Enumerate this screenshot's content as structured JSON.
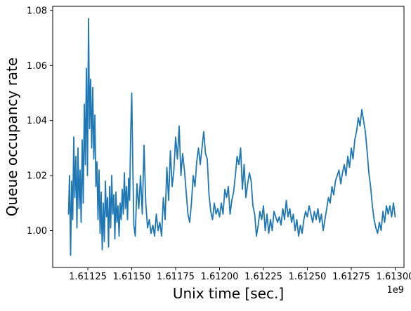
{
  "chart_data": {
    "type": "line",
    "xlabel": "Unix time [sec.]",
    "ylabel": "Queue occupancy rate",
    "x_offset_label": "1e9",
    "x_tick_labels": [
      "1.61125",
      "1.61150",
      "1.61175",
      "1.61200",
      "1.61225",
      "1.61250",
      "1.61275",
      "1.61300"
    ],
    "x_tick_values": [
      1611250000,
      1611500000,
      1611750000,
      1612000000,
      1612250000,
      1612500000,
      1612750000,
      1613000000
    ],
    "y_tick_labels": [
      "1.00",
      "1.02",
      "1.04",
      "1.06",
      "1.08"
    ],
    "y_tick_values": [
      1.0,
      1.02,
      1.04,
      1.06,
      1.08
    ],
    "xlim": [
      1611050000,
      1613050000
    ],
    "ylim": [
      0.9866,
      1.0815
    ],
    "grid": false,
    "series": [
      {
        "color": "#1f77b4",
        "x": [
          1611140000,
          1611146000,
          1611152000,
          1611158000,
          1611164000,
          1611170000,
          1611176000,
          1611182000,
          1611188000,
          1611194000,
          1611200000,
          1611206000,
          1611212000,
          1611218000,
          1611224000,
          1611230000,
          1611236000,
          1611242000,
          1611248000,
          1611254000,
          1611260000,
          1611266000,
          1611272000,
          1611278000,
          1611284000,
          1611290000,
          1611296000,
          1611302000,
          1611308000,
          1611314000,
          1611320000,
          1611326000,
          1611332000,
          1611338000,
          1611344000,
          1611350000,
          1611356000,
          1611362000,
          1611368000,
          1611374000,
          1611380000,
          1611386000,
          1611392000,
          1611398000,
          1611404000,
          1611410000,
          1611416000,
          1611422000,
          1611428000,
          1611434000,
          1611440000,
          1611446000,
          1611452000,
          1611458000,
          1611464000,
          1611470000,
          1611476000,
          1611482000,
          1611488000,
          1611494000,
          1611500000,
          1611506000,
          1611512000,
          1611520000,
          1611530000,
          1611540000,
          1611550000,
          1611560000,
          1611570000,
          1611580000,
          1611590000,
          1611600000,
          1611610000,
          1611620000,
          1611630000,
          1611640000,
          1611650000,
          1611660000,
          1611670000,
          1611680000,
          1611690000,
          1611700000,
          1611710000,
          1611720000,
          1611730000,
          1611740000,
          1611750000,
          1611760000,
          1611770000,
          1611780000,
          1611790000,
          1611800000,
          1611810000,
          1611820000,
          1611830000,
          1611840000,
          1611850000,
          1611860000,
          1611870000,
          1611880000,
          1611890000,
          1611900000,
          1611910000,
          1611920000,
          1611930000,
          1611940000,
          1611950000,
          1611960000,
          1611970000,
          1611980000,
          1611990000,
          1612000000,
          1612010000,
          1612020000,
          1612030000,
          1612040000,
          1612050000,
          1612060000,
          1612070000,
          1612080000,
          1612090000,
          1612100000,
          1612110000,
          1612120000,
          1612130000,
          1612140000,
          1612150000,
          1612160000,
          1612170000,
          1612180000,
          1612190000,
          1612200000,
          1612210000,
          1612220000,
          1612230000,
          1612240000,
          1612250000,
          1612260000,
          1612270000,
          1612280000,
          1612290000,
          1612300000,
          1612310000,
          1612320000,
          1612330000,
          1612340000,
          1612350000,
          1612360000,
          1612370000,
          1612380000,
          1612390000,
          1612400000,
          1612410000,
          1612420000,
          1612430000,
          1612440000,
          1612450000,
          1612460000,
          1612470000,
          1612480000,
          1612490000,
          1612500000,
          1612510000,
          1612520000,
          1612530000,
          1612540000,
          1612550000,
          1612560000,
          1612570000,
          1612580000,
          1612590000,
          1612600000,
          1612610000,
          1612620000,
          1612630000,
          1612640000,
          1612650000,
          1612660000,
          1612670000,
          1612680000,
          1612690000,
          1612700000,
          1612710000,
          1612720000,
          1612730000,
          1612740000,
          1612750000,
          1612760000,
          1612770000,
          1612780000,
          1612790000,
          1612800000,
          1612810000,
          1612820000,
          1612830000,
          1612840000,
          1612850000,
          1612860000,
          1612870000,
          1612880000,
          1612890000,
          1612900000,
          1612910000,
          1612920000,
          1612930000,
          1612940000,
          1612950000,
          1612960000,
          1612970000,
          1612980000,
          1612990000,
          1613000000
        ],
        "y": [
          1.006,
          1.02,
          0.991,
          1.018,
          1.004,
          1.034,
          1.012,
          1.027,
          1.001,
          1.03,
          1.008,
          1.022,
          1.003,
          1.033,
          1.01,
          1.046,
          1.024,
          1.059,
          1.02,
          1.077,
          1.037,
          1.055,
          1.03,
          1.052,
          1.026,
          1.042,
          1.016,
          1.025,
          1.004,
          1.022,
          0.999,
          1.014,
          0.993,
          1.01,
          0.996,
          1.018,
          1.005,
          1.012,
          0.994,
          1.016,
          1.001,
          1.02,
          1.006,
          1.013,
          0.997,
          1.014,
          1.003,
          1.009,
          0.998,
          1.01,
          1.004,
          1.015,
          1.006,
          1.021,
          1.008,
          1.016,
          1.004,
          1.019,
          1.011,
          1.035,
          1.05,
          1.024,
          1.002,
          0.998,
          1.017,
          1.008,
          1.02,
          1.006,
          1.031,
          1.01,
          1.001,
          1.004,
          0.999,
          1.002,
          0.998,
          1.006,
          1.0,
          1.003,
          0.998,
          1.012,
          1.004,
          1.023,
          1.011,
          1.029,
          1.016,
          1.022,
          1.034,
          1.026,
          1.038,
          1.02,
          1.028,
          1.022,
          1.014,
          1.006,
          1.003,
          1.01,
          1.02,
          1.016,
          1.025,
          1.03,
          1.024,
          1.03,
          1.036,
          1.028,
          1.026,
          1.013,
          1.007,
          1.004,
          1.01,
          1.006,
          1.008,
          1.005,
          1.01,
          1.006,
          1.015,
          1.012,
          1.016,
          1.006,
          1.011,
          1.014,
          1.02,
          1.027,
          1.024,
          1.03,
          1.015,
          1.024,
          1.012,
          1.017,
          1.021,
          1.018,
          1.009,
          1.006,
          0.998,
          1.002,
          1.007,
          1.004,
          1.009,
          1.0,
          1.006,
          0.999,
          1.004,
          1.0,
          1.007,
          1.005,
          1.003,
          1.005,
          1.002,
          1.008,
          1.004,
          1.011,
          1.005,
          1.008,
          1.003,
          1.006,
          1.0,
          1.004,
          0.998,
          1.002,
          0.999,
          1.004,
          1.007,
          1.005,
          1.009,
          1.006,
          1.003,
          1.007,
          1.004,
          1.008,
          1.003,
          1.006,
          1.0,
          1.004,
          1.008,
          1.012,
          1.01,
          1.016,
          1.013,
          1.018,
          1.02,
          1.022,
          1.017,
          1.021,
          1.024,
          1.02,
          1.027,
          1.023,
          1.03,
          1.026,
          1.033,
          1.036,
          1.041,
          1.038,
          1.044,
          1.04,
          1.036,
          1.029,
          1.021,
          1.016,
          1.009,
          1.004,
          1.001,
          0.999,
          1.003,
          1.0,
          1.007,
          1.003,
          1.009,
          1.006,
          1.009,
          1.005,
          1.01,
          1.005
        ]
      }
    ]
  }
}
